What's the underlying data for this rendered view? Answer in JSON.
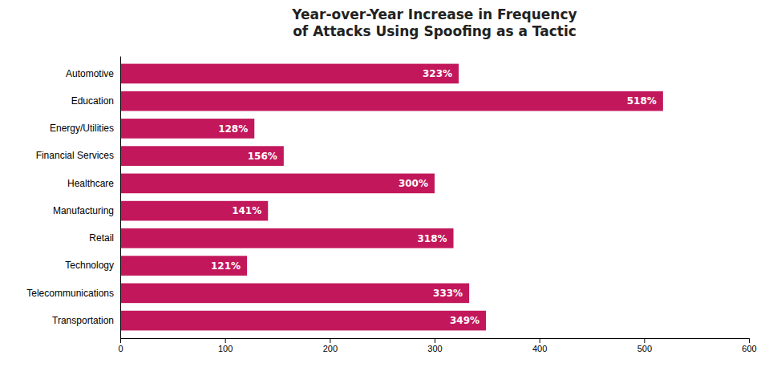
{
  "chart_data": {
    "type": "bar",
    "orientation": "horizontal",
    "title": "Year-over-Year Increase in Frequency\nof Attacks Using Spoofing as a Tactic",
    "categories": [
      "Automotive",
      "Education",
      "Energy/Utilities",
      "Financial Services",
      "Healthcare",
      "Manufacturing",
      "Retail",
      "Technology",
      "Telecommunications",
      "Transportation"
    ],
    "values": [
      323,
      518,
      128,
      156,
      300,
      141,
      318,
      121,
      333,
      349
    ],
    "value_labels": [
      "323%",
      "518%",
      "128%",
      "156%",
      "300%",
      "141%",
      "318%",
      "121%",
      "333%",
      "349%"
    ],
    "color": "#C2185B",
    "xlim": [
      0,
      600
    ],
    "xticks": [
      0,
      100,
      200,
      300,
      400,
      500,
      600
    ],
    "grid": false,
    "data_labels": true
  }
}
